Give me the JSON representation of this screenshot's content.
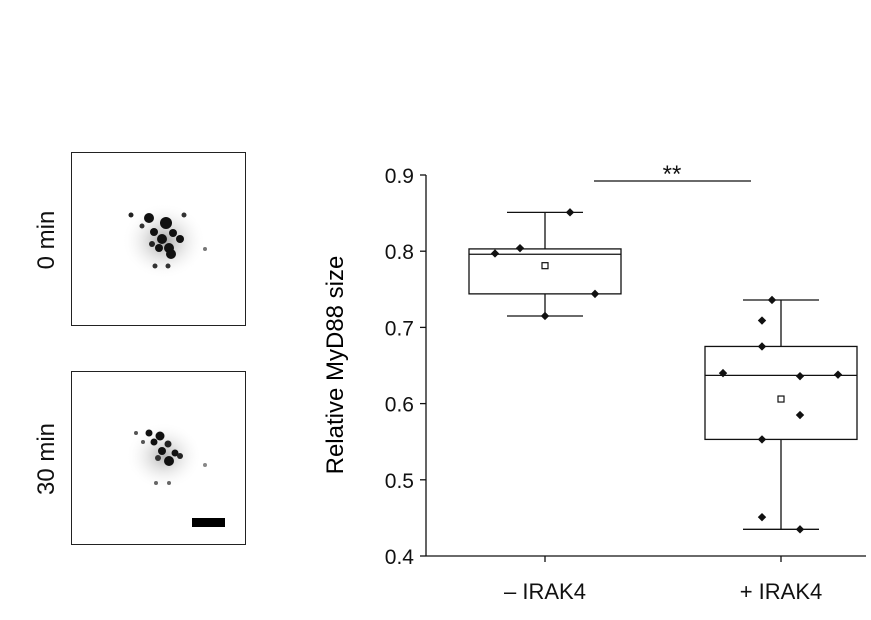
{
  "images": [
    {
      "label": "0 min"
    },
    {
      "label": "30 min"
    }
  ],
  "chart_data": {
    "type": "box",
    "title": "",
    "xlabel": "",
    "ylabel": "Relative MyD88 size",
    "ylim": [
      0.4,
      0.9
    ],
    "yticks": [
      "0.4",
      "0.5",
      "0.6",
      "0.7",
      "0.8",
      "0.9"
    ],
    "categories": [
      "– IRAK4",
      "+ IRAK4"
    ],
    "series": [
      {
        "category": "– IRAK4",
        "box": {
          "whisker_low": 0.715,
          "q1": 0.744,
          "median": 0.796,
          "q3": 0.803,
          "whisker_high": 0.851,
          "mean": 0.781
        },
        "points": [
          0.851,
          0.804,
          0.797,
          0.744,
          0.715
        ]
      },
      {
        "category": "+ IRAK4",
        "box": {
          "whisker_low": 0.435,
          "q1": 0.553,
          "median": 0.637,
          "q3": 0.675,
          "whisker_high": 0.736,
          "mean": 0.606
        },
        "points": [
          0.736,
          0.709,
          0.675,
          0.64,
          0.636,
          0.638,
          0.585,
          0.553,
          0.451,
          0.435
        ]
      }
    ],
    "significance": {
      "label": "**",
      "between": [
        "– IRAK4",
        "+ IRAK4"
      ]
    },
    "grid": false,
    "colors": {
      "ink": "#111111"
    }
  }
}
